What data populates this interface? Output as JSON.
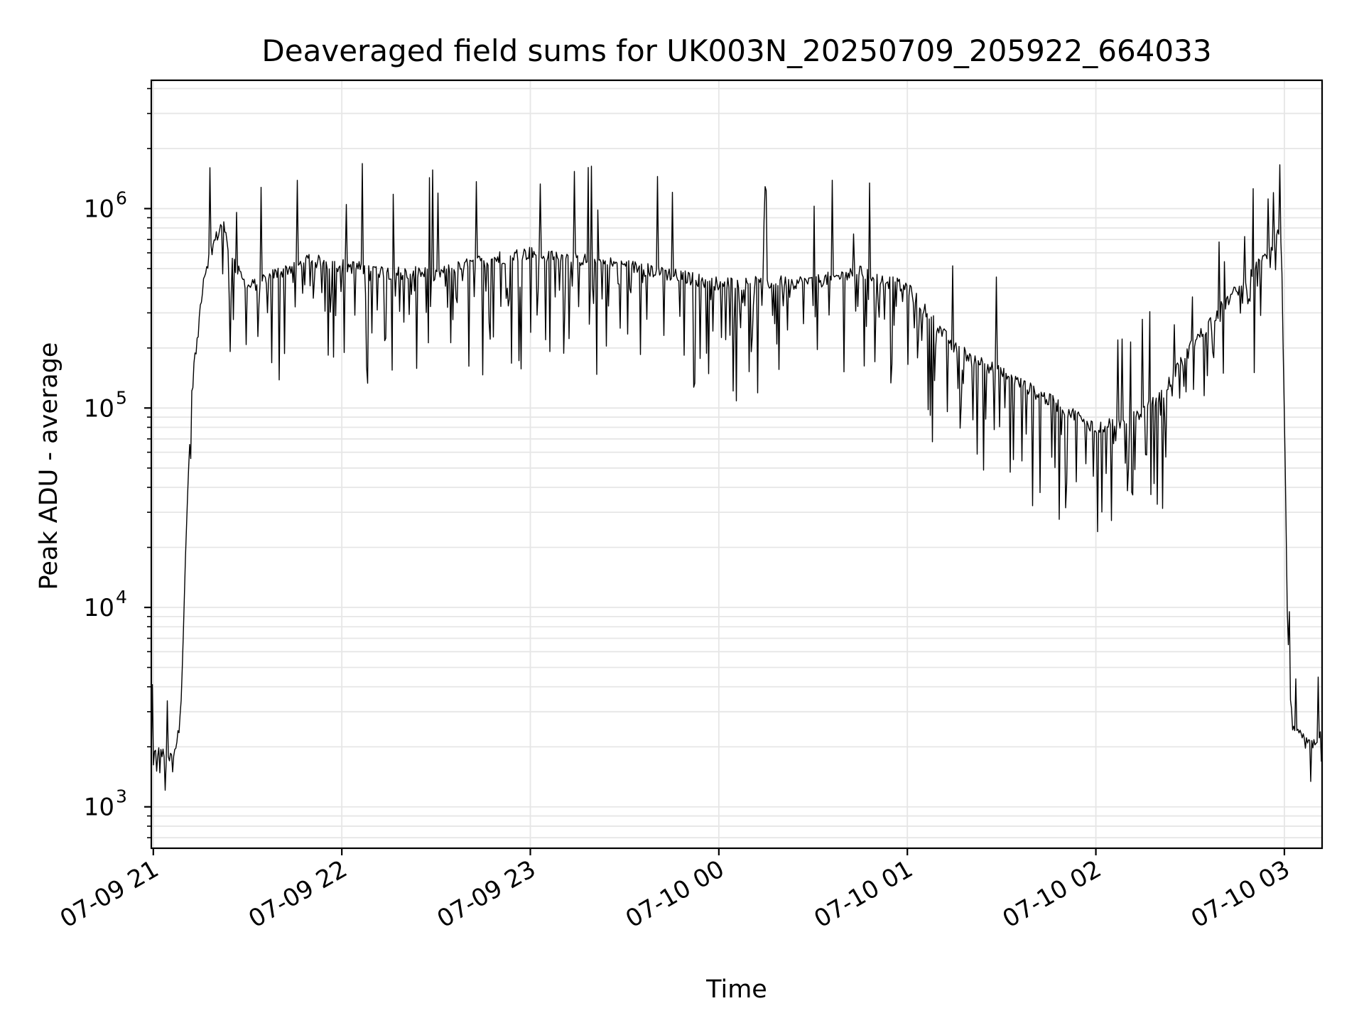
{
  "chart_data": {
    "type": "line",
    "title": "Deaveraged field sums for UK003N_20250709_205922_664033",
    "xlabel": "Time",
    "ylabel": "Peak ADU - average",
    "yscale": "log",
    "ylim": [
      620,
      4400000
    ],
    "xlim": [
      "2025-07-09 20:59:22",
      "2025-07-10 03:12:00"
    ],
    "x_ticks": [
      {
        "value": "2025-07-09 21:00",
        "label": "07-09 21"
      },
      {
        "value": "2025-07-09 22:00",
        "label": "07-09 22"
      },
      {
        "value": "2025-07-09 23:00",
        "label": "07-09 23"
      },
      {
        "value": "2025-07-10 00:00",
        "label": "07-10 00"
      },
      {
        "value": "2025-07-10 01:00",
        "label": "07-10 01"
      },
      {
        "value": "2025-07-10 02:00",
        "label": "07-10 02"
      },
      {
        "value": "2025-07-10 03:00",
        "label": "07-10 03"
      }
    ],
    "y_ticks": [
      {
        "value": 1000,
        "base": "10",
        "exp": "3"
      },
      {
        "value": 10000,
        "base": "10",
        "exp": "4"
      },
      {
        "value": 100000,
        "base": "10",
        "exp": "5"
      },
      {
        "value": 1000000,
        "base": "10",
        "exp": "6"
      }
    ],
    "grid": true,
    "line_color": "#000000",
    "series": [
      {
        "x": [
          "2025-07-09 20:59:22",
          "2025-07-09 21:02:00",
          "2025-07-09 21:05:00",
          "2025-07-09 21:07:00",
          "2025-07-09 21:08:00",
          "2025-07-09 21:09:00",
          "2025-07-09 21:10:00",
          "2025-07-09 21:11:00",
          "2025-07-09 21:12:00",
          "2025-07-09 21:13:00",
          "2025-07-09 21:14:00",
          "2025-07-09 21:15:00",
          "2025-07-09 21:16:00",
          "2025-07-09 21:18:00",
          "2025-07-09 21:22:00",
          "2025-07-09 21:25:00",
          "2025-07-09 21:30:00",
          "2025-07-09 21:40:00",
          "2025-07-09 21:50:00",
          "2025-07-09 22:00:00",
          "2025-07-09 22:15:00",
          "2025-07-09 22:30:00",
          "2025-07-09 22:45:00",
          "2025-07-09 23:00:00",
          "2025-07-09 23:30:00",
          "2025-07-10 00:00:00",
          "2025-07-10 00:30:00",
          "2025-07-10 00:45:00",
          "2025-07-10 01:00:00",
          "2025-07-10 01:15:00",
          "2025-07-10 01:30:00",
          "2025-07-10 01:45:00",
          "2025-07-10 02:00:00",
          "2025-07-10 02:10:00",
          "2025-07-10 02:20:00",
          "2025-07-10 02:30:00",
          "2025-07-10 02:40:00",
          "2025-07-10 02:50:00",
          "2025-07-10 02:55:00",
          "2025-07-10 02:57:00",
          "2025-07-10 02:58:00",
          "2025-07-10 02:59:00",
          "2025-07-10 03:00:00",
          "2025-07-10 03:01:00",
          "2025-07-10 03:02:00",
          "2025-07-10 03:04:00",
          "2025-07-10 03:06:00",
          "2025-07-10 03:08:00",
          "2025-07-10 03:10:00",
          "2025-07-10 03:12:00"
        ],
        "y": [
          1800,
          1900,
          1700,
          2000,
          2300,
          4000,
          13000,
          40000,
          100000,
          170000,
          210000,
          330000,
          450000,
          600000,
          850000,
          550000,
          400000,
          480000,
          550000,
          520000,
          480000,
          470000,
          550000,
          600000,
          520000,
          420000,
          430000,
          480000,
          400000,
          200000,
          150000,
          110000,
          80000,
          85000,
          110000,
          200000,
          320000,
          480000,
          600000,
          700000,
          750000,
          720000,
          90000,
          8000,
          3000,
          2300,
          2200,
          2000,
          2200,
          2300
        ]
      }
    ]
  }
}
